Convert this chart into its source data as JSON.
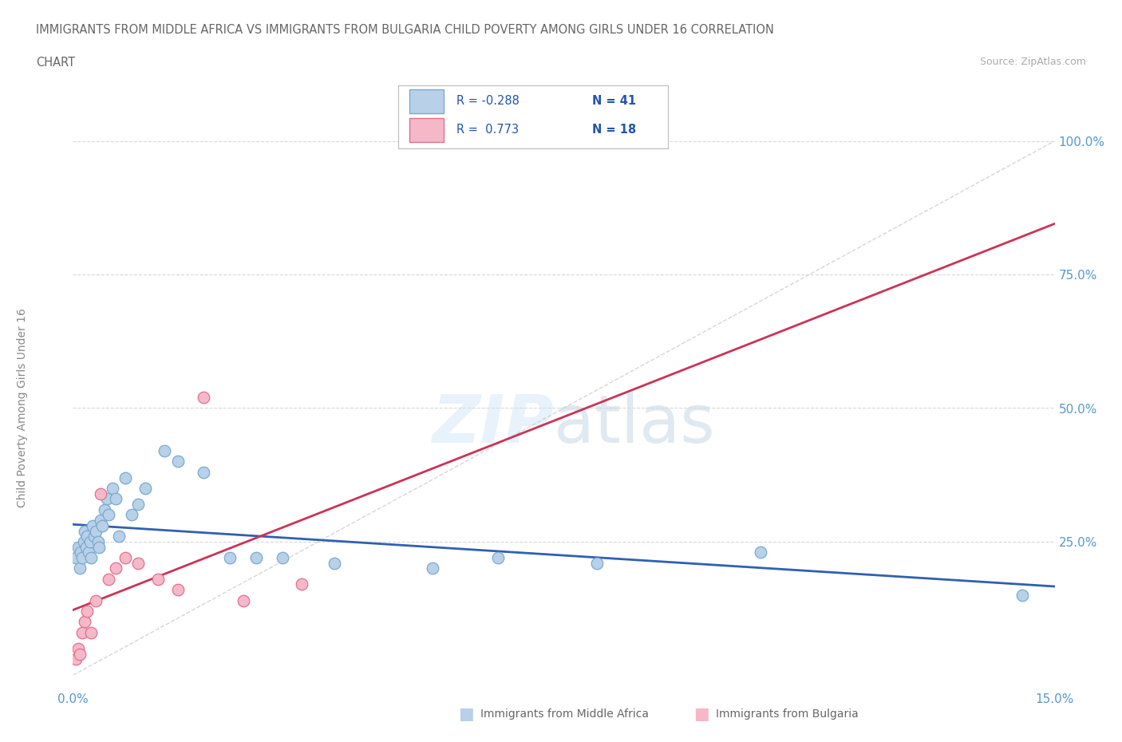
{
  "title_line1": "IMMIGRANTS FROM MIDDLE AFRICA VS IMMIGRANTS FROM BULGARIA CHILD POVERTY AMONG GIRLS UNDER 16 CORRELATION",
  "title_line2": "CHART",
  "source": "Source: ZipAtlas.com",
  "ylabel": "Child Poverty Among Girls Under 16",
  "xlim": [
    0.0,
    15.0
  ],
  "ylim": [
    0.0,
    100.0
  ],
  "background_color": "#ffffff",
  "grid_color": "#d8d8d8",
  "blue_series": {
    "name": "Immigrants from Middle Africa",
    "face_color": "#b8d0e8",
    "edge_color": "#7aaad0",
    "line_color": "#3060b0",
    "R": -0.288,
    "N": 41,
    "x": [
      0.05,
      0.08,
      0.1,
      0.12,
      0.14,
      0.16,
      0.18,
      0.2,
      0.22,
      0.24,
      0.26,
      0.28,
      0.3,
      0.32,
      0.35,
      0.38,
      0.4,
      0.42,
      0.45,
      0.48,
      0.52,
      0.55,
      0.6,
      0.65,
      0.7,
      0.8,
      0.9,
      1.0,
      1.1,
      1.4,
      1.6,
      2.0,
      2.4,
      2.8,
      3.2,
      4.0,
      5.5,
      6.5,
      8.0,
      10.5,
      14.5
    ],
    "y": [
      22,
      24,
      20,
      23,
      22,
      25,
      27,
      24,
      26,
      23,
      25,
      22,
      28,
      26,
      27,
      25,
      24,
      29,
      28,
      31,
      33,
      30,
      35,
      33,
      26,
      37,
      30,
      32,
      35,
      42,
      40,
      38,
      22,
      22,
      22,
      21,
      20,
      22,
      21,
      23,
      15
    ]
  },
  "pink_series": {
    "name": "Immigrants from Bulgaria",
    "face_color": "#f5b8c8",
    "edge_color": "#e07090",
    "line_color": "#cc3355",
    "R": 0.773,
    "N": 18,
    "x": [
      0.05,
      0.08,
      0.1,
      0.14,
      0.18,
      0.22,
      0.28,
      0.35,
      0.42,
      0.55,
      0.65,
      0.8,
      1.0,
      1.3,
      1.6,
      2.0,
      2.6,
      3.5
    ],
    "y": [
      3,
      5,
      4,
      8,
      10,
      12,
      8,
      14,
      34,
      18,
      20,
      22,
      21,
      18,
      16,
      52,
      14,
      17
    ]
  },
  "diag_color": "#cccccc",
  "tick_color": "#5599cc",
  "ylabel_color": "#888888",
  "title_color": "#666666",
  "source_color": "#aaaaaa",
  "legend_label_color": "#222222",
  "legend_RN_color": "#2255aa"
}
